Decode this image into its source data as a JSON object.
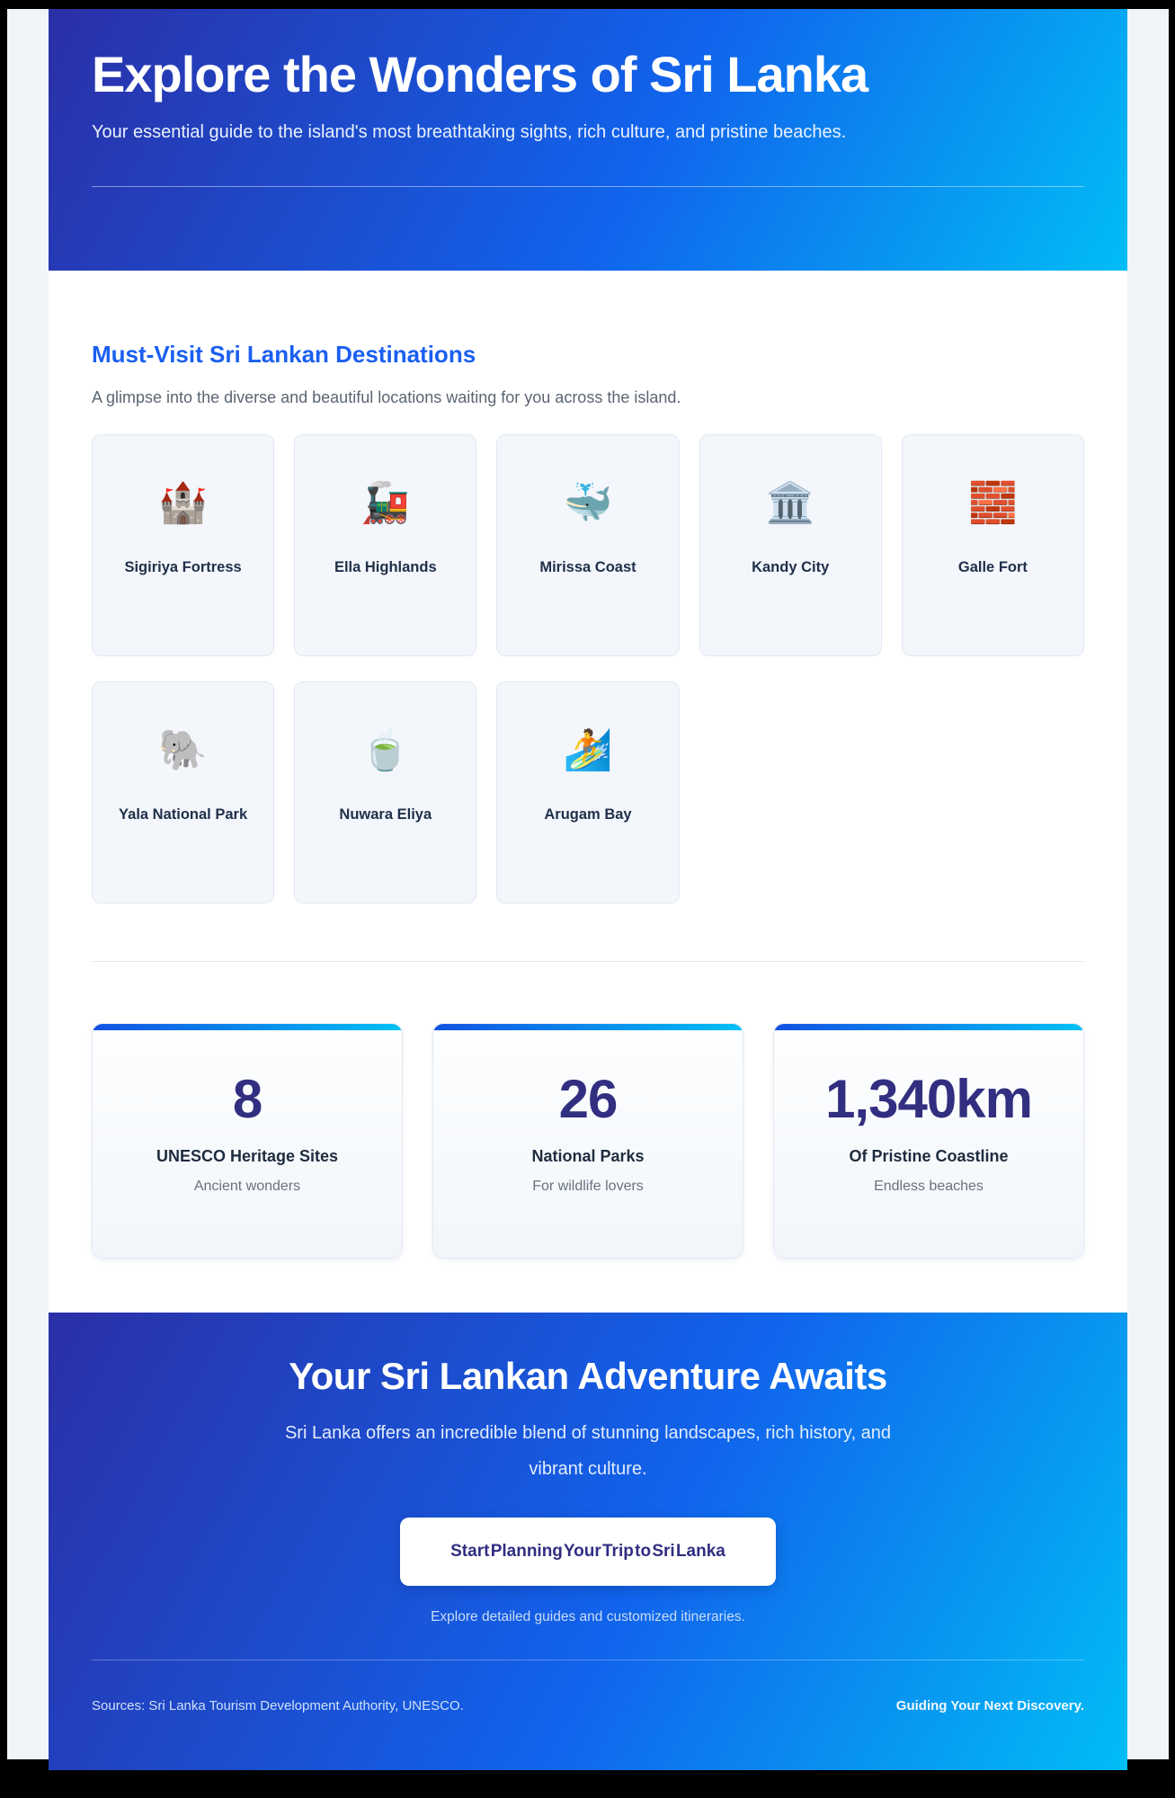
{
  "hero": {
    "title": "Explore the Wonders of Sri Lanka",
    "subtitle": "Your essential guide to the island's most breathtaking sights, rich culture, and pristine beaches."
  },
  "destinations": {
    "heading": "Must-Visit Sri Lankan Destinations",
    "description": "A glimpse into the diverse and beautiful locations waiting for you across the island.",
    "cards": [
      {
        "emoji": "🏰",
        "icon": "castle-icon",
        "label": "Sigiriya Fortress"
      },
      {
        "emoji": "🚂",
        "icon": "locomotive-icon",
        "label": "Ella Highlands"
      },
      {
        "emoji": "🐳",
        "icon": "whale-icon",
        "label": "Mirissa Coast"
      },
      {
        "emoji": "🏛️",
        "icon": "classical-building-icon",
        "label": "Kandy City"
      },
      {
        "emoji": "🧱",
        "icon": "brick-icon",
        "label": "Galle Fort"
      },
      {
        "emoji": "🐘",
        "icon": "elephant-icon",
        "label": "Yala National Park"
      },
      {
        "emoji": "🍵",
        "icon": "teacup-icon",
        "label": "Nuwara Eliya"
      },
      {
        "emoji": "🏄",
        "icon": "surfer-icon",
        "label": "Arugam Bay"
      }
    ]
  },
  "stats": [
    {
      "value": "8",
      "label": "UNESCO Heritage Sites",
      "sublabel": "Ancient wonders"
    },
    {
      "value": "26",
      "label": "National Parks",
      "sublabel": "For wildlife lovers"
    },
    {
      "value": "1,340km",
      "label": "Of Pristine Coastline",
      "sublabel": "Endless beaches"
    }
  ],
  "cta": {
    "title": "Your Sri Lankan Adventure Awaits",
    "description": "Sri Lanka offers an incredible blend of stunning landscapes, rich history, and vibrant culture.",
    "button_label": "Start Planning Your Trip to Sri Lanka",
    "note": "Explore detailed guides and customized itineraries."
  },
  "footer": {
    "sources": "Sources: Sri Lanka Tourism Development Authority, UNESCO.",
    "tagline": "Guiding Your Next Discovery."
  },
  "colors": {
    "gradient_start": "#2b2fa6",
    "gradient_mid": "#1163ec",
    "gradient_end": "#01bdf5",
    "accent_blue": "#1a5ff0",
    "stat_number": "#322e80",
    "stat_bar_start": "#1251e4",
    "stat_bar_end": "#00c0f4",
    "page_background": "#f1f5f9"
  }
}
